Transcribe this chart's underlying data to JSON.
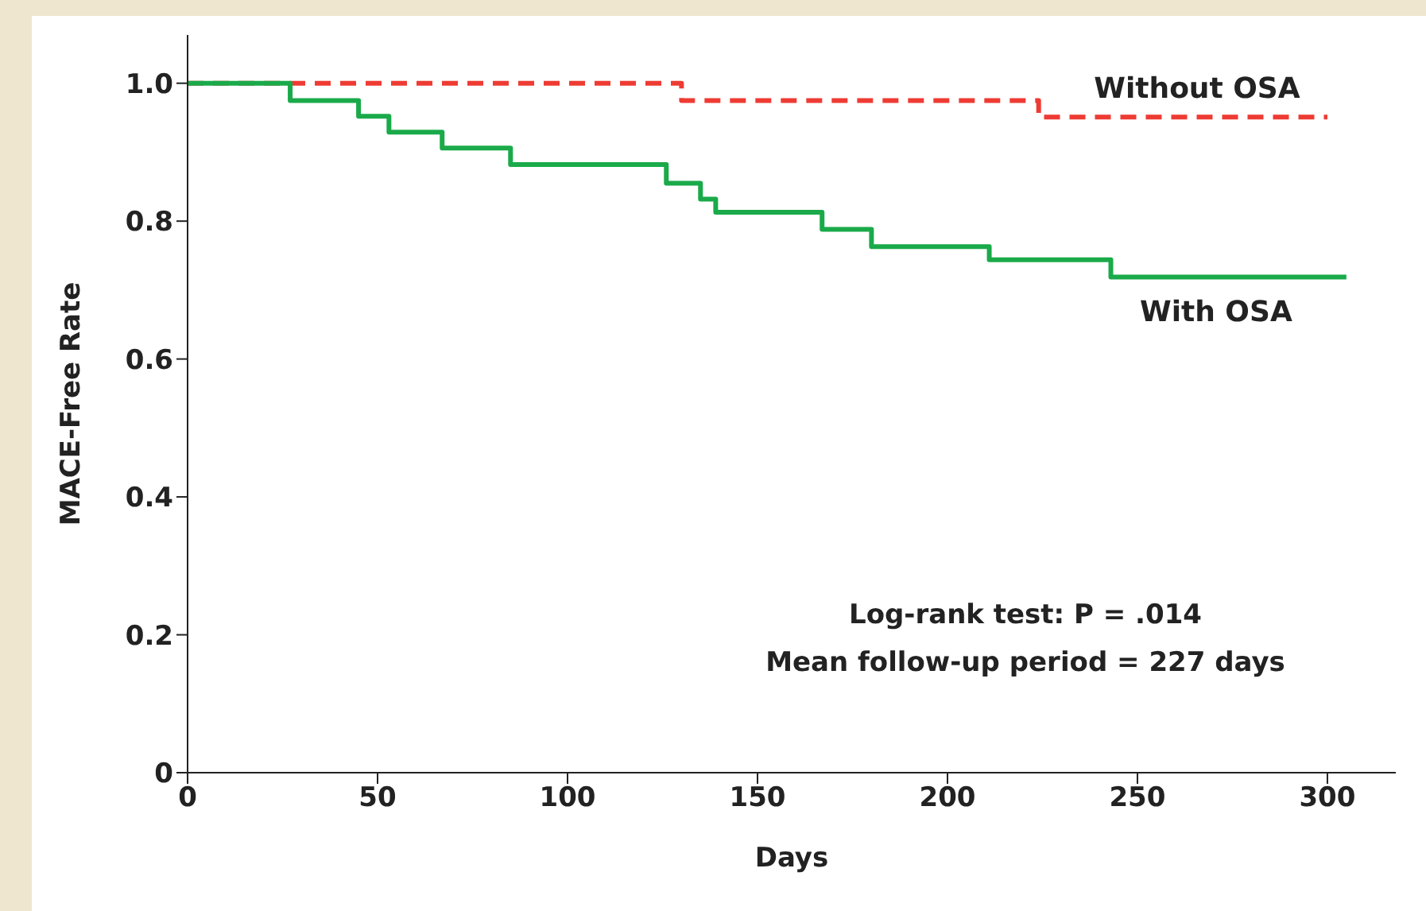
{
  "chart_data": {
    "type": "step",
    "xlabel": "Days",
    "ylabel": "MACE-Free Rate",
    "xlim": [
      0,
      318
    ],
    "xticks": [
      0,
      50,
      100,
      150,
      200,
      250,
      300
    ],
    "ylim": [
      0,
      1.07
    ],
    "yticks": [
      0,
      0.2,
      0.4,
      0.6,
      0.8,
      {
        "value": 1,
        "label": "1.0"
      }
    ],
    "grid": false,
    "legend": false,
    "annotations": [
      "Log-rank test: P = .014",
      "Mean follow-up period = 227 days"
    ],
    "series": [
      {
        "name": "Without OSA",
        "color": "#ee3b33",
        "line_style": "dashed",
        "x": [
          0,
          130,
          224,
          300
        ],
        "values": [
          1,
          0.975,
          0.951,
          0.951
        ]
      },
      {
        "name": "With OSA",
        "color": "#1aaa4a",
        "line_style": "solid",
        "x": [
          0,
          27,
          45,
          53,
          67,
          85,
          126,
          135,
          139,
          167,
          180,
          211,
          243,
          305
        ],
        "values": [
          1,
          0.975,
          0.952,
          0.929,
          0.906,
          0.882,
          0.855,
          0.832,
          0.813,
          0.788,
          0.763,
          0.744,
          0.719,
          0.719
        ]
      }
    ]
  }
}
